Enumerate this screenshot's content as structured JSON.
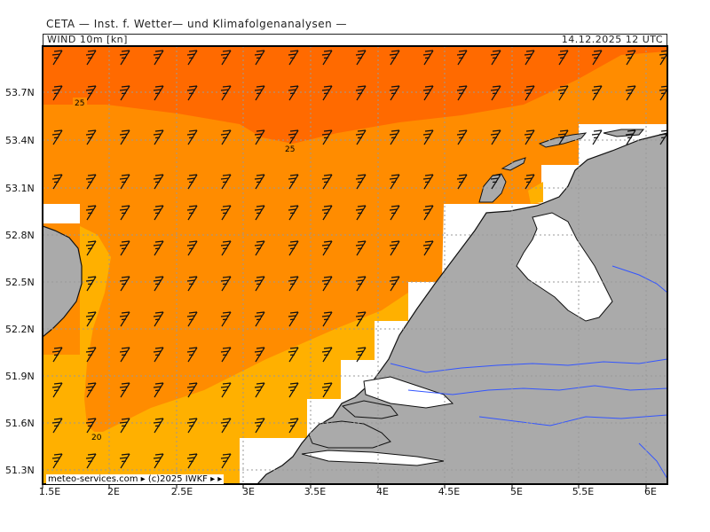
{
  "header": {
    "title": "CETA — Inst. f. Wetter— und Klimafolgenanalysen —",
    "variable": "WIND 10m [kn]",
    "valid_time": "14.12.2025  12 UTC"
  },
  "axes": {
    "lat_labels": [
      "53.7N",
      "53.4N",
      "53.1N",
      "52.8N",
      "52.5N",
      "52.2N",
      "51.9N",
      "51.6N",
      "51.3N"
    ],
    "lon_labels": [
      "1.5E",
      "2E",
      "2.5E",
      "3E",
      "3.5E",
      "4E",
      "4.5E",
      "5E",
      "5.5E",
      "6E"
    ]
  },
  "contours": {
    "labels": [
      "25",
      "25",
      "20"
    ]
  },
  "footer": {
    "copyright": "meteo-services.com  ▸  (c)2025 IWKF  ▸  ▸"
  },
  "colors": {
    "strong": "#ff6a00",
    "medium": "#ff8c00",
    "weak": "#ffb000",
    "land": "#aaaaaa",
    "rivers": "#3355ff"
  }
}
